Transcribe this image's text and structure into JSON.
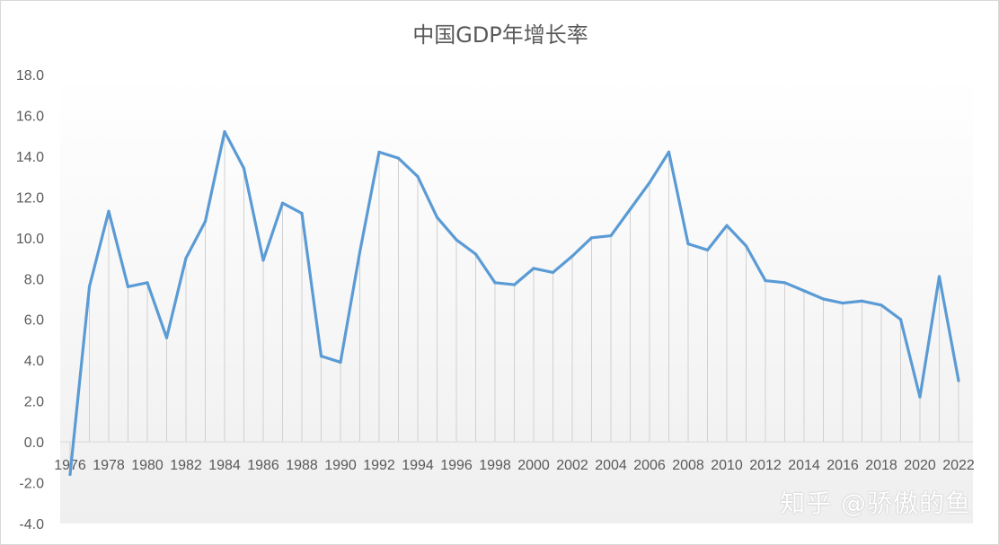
{
  "chart_data": {
    "type": "line",
    "title": "中国GDP年增长率",
    "xlabel": "",
    "ylabel": "",
    "ylim": [
      -4.0,
      18.0
    ],
    "y_ticks": [
      "-4.0",
      "-2.0",
      "0.0",
      "2.0",
      "4.0",
      "6.0",
      "8.0",
      "10.0",
      "12.0",
      "14.0",
      "16.0",
      "18.0"
    ],
    "x_tick_labels": [
      "1976",
      "1978",
      "1980",
      "1982",
      "1984",
      "1986",
      "1988",
      "1990",
      "1992",
      "1994",
      "1996",
      "1998",
      "2000",
      "2002",
      "2004",
      "2006",
      "2008",
      "2010",
      "2012",
      "2014",
      "2016",
      "2018",
      "2020",
      "2022"
    ],
    "grid": "vertical drop lines at each year",
    "line_color": "#5b9bd5",
    "series": [
      {
        "x": [
          1976,
          1977,
          1978,
          1979,
          1980,
          1981,
          1982,
          1983,
          1984,
          1985,
          1986,
          1987,
          1988,
          1989,
          1990,
          1991,
          1992,
          1993,
          1994,
          1995,
          1996,
          1997,
          1998,
          1999,
          2000,
          2001,
          2002,
          2003,
          2004,
          2005,
          2006,
          2007,
          2008,
          2009,
          2010,
          2011,
          2012,
          2013,
          2014,
          2015,
          2016,
          2017,
          2018,
          2019,
          2020,
          2021,
          2022
        ],
        "values": [
          -1.6,
          7.6,
          11.3,
          7.6,
          7.8,
          5.1,
          9.0,
          10.8,
          15.2,
          13.4,
          8.9,
          11.7,
          11.2,
          4.2,
          3.9,
          9.3,
          14.2,
          13.9,
          13.0,
          11.0,
          9.9,
          9.2,
          7.8,
          7.7,
          8.5,
          8.3,
          9.1,
          10.0,
          10.1,
          11.4,
          12.7,
          14.2,
          9.7,
          9.4,
          10.6,
          9.6,
          7.9,
          7.8,
          7.4,
          7.0,
          6.8,
          6.9,
          6.7,
          6.0,
          2.2,
          8.1,
          3.0
        ]
      }
    ]
  },
  "watermark": "知乎 @骄傲的鱼"
}
